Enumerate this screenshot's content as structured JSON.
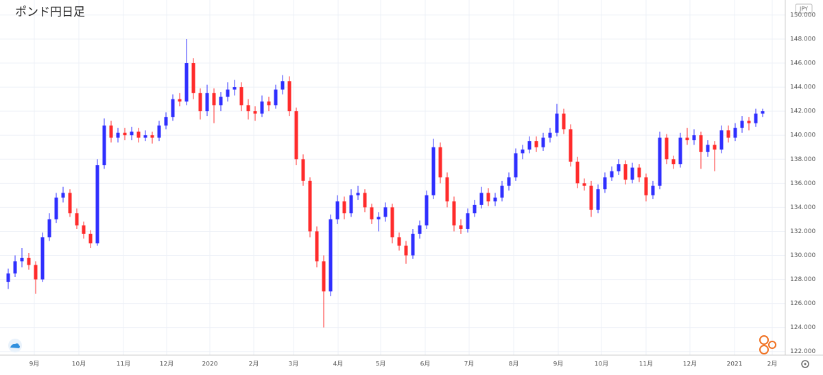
{
  "chart_data": {
    "type": "candlestick",
    "title": "ポンド円日足",
    "y_axis_label": "JPY",
    "up_color": "#2f2fff",
    "down_color": "#ff2b2b",
    "grid": true,
    "ylim": [
      121.7,
      151.25
    ],
    "yticks": [
      {
        "value": 122,
        "label": "122.000"
      },
      {
        "value": 124,
        "label": "124.000"
      },
      {
        "value": 126,
        "label": "126.000"
      },
      {
        "value": 128,
        "label": "128.000"
      },
      {
        "value": 130,
        "label": "130.000"
      },
      {
        "value": 132,
        "label": "132.000"
      },
      {
        "value": 134,
        "label": "134.000"
      },
      {
        "value": 136,
        "label": "136.000"
      },
      {
        "value": 138,
        "label": "138.000"
      },
      {
        "value": 140,
        "label": "140.000"
      },
      {
        "value": 142,
        "label": "142.000"
      },
      {
        "value": 144,
        "label": "144.000"
      },
      {
        "value": 146,
        "label": "146.000"
      },
      {
        "value": 148,
        "label": "148.000"
      },
      {
        "value": 150,
        "label": "150.000"
      }
    ],
    "xlim": [
      -1.2,
      112.8
    ],
    "xticks": [
      {
        "value": 3.8,
        "label": "9月"
      },
      {
        "value": 10.3,
        "label": "10月"
      },
      {
        "value": 16.8,
        "label": "11月"
      },
      {
        "value": 23.1,
        "label": "12月"
      },
      {
        "value": 29.4,
        "label": "2020"
      },
      {
        "value": 35.8,
        "label": "2月"
      },
      {
        "value": 41.6,
        "label": "3月"
      },
      {
        "value": 48.1,
        "label": "4月"
      },
      {
        "value": 54.3,
        "label": "5月"
      },
      {
        "value": 60.8,
        "label": "6月"
      },
      {
        "value": 67.2,
        "label": "7月"
      },
      {
        "value": 73.7,
        "label": "8月"
      },
      {
        "value": 80.2,
        "label": "9月"
      },
      {
        "value": 86.5,
        "label": "10月"
      },
      {
        "value": 93.0,
        "label": "11月"
      },
      {
        "value": 99.4,
        "label": "12月"
      },
      {
        "value": 105.9,
        "label": "2021"
      },
      {
        "value": 111.4,
        "label": "2月"
      }
    ],
    "open": [
      127.8,
      128.5,
      129.5,
      129.8,
      129.2,
      128.0,
      131.5,
      133.0,
      134.8,
      135.2,
      133.5,
      132.5,
      131.8,
      131.0,
      137.5,
      140.8,
      139.8,
      140.2,
      140.0,
      140.3,
      139.8,
      140.0,
      139.8,
      140.8,
      141.5,
      143.0,
      142.8,
      146.0,
      143.5,
      142.0,
      143.5,
      142.5,
      143.2,
      143.8,
      144.0,
      142.5,
      142.0,
      141.8,
      142.8,
      142.5,
      143.8,
      144.5,
      142.0,
      138.0,
      136.2,
      132.0,
      129.5,
      127.0,
      133.0,
      134.5,
      133.5,
      135.0,
      135.2,
      134.0,
      133.0,
      133.2,
      134.0,
      131.5,
      130.8,
      130.0,
      131.8,
      132.5,
      135.0,
      139.0,
      136.5,
      134.5,
      132.5,
      132.2,
      133.5,
      134.2,
      135.2,
      134.5,
      134.8,
      135.8,
      136.5,
      138.5,
      138.8,
      139.5,
      139.0,
      139.8,
      140.2,
      141.8,
      140.5,
      137.8,
      136.0,
      135.8,
      133.8,
      135.5,
      136.5,
      137.0,
      137.6,
      136.3,
      137.3,
      136.5,
      135.0,
      135.8,
      139.8,
      138.0,
      137.6,
      139.8,
      139.6,
      140.0,
      138.6,
      139.2,
      138.8,
      140.4,
      139.8,
      140.6,
      141.2,
      141.0,
      141.8
    ],
    "high": [
      128.9,
      130.0,
      130.6,
      130.2,
      129.5,
      131.9,
      133.5,
      135.2,
      135.7,
      135.5,
      133.9,
      132.8,
      132.1,
      138.0,
      141.4,
      141.2,
      140.6,
      140.6,
      140.7,
      140.6,
      140.4,
      140.3,
      141.2,
      141.9,
      143.4,
      143.5,
      148.0,
      146.4,
      143.9,
      144.2,
      143.9,
      143.6,
      144.4,
      144.6,
      144.4,
      143.0,
      142.4,
      143.3,
      143.2,
      144.2,
      145.0,
      144.9,
      142.3,
      138.4,
      136.5,
      132.4,
      130.0,
      133.4,
      135.0,
      134.9,
      135.5,
      135.8,
      135.5,
      134.3,
      133.6,
      134.4,
      134.3,
      131.9,
      131.2,
      132.2,
      132.9,
      135.4,
      139.7,
      139.4,
      136.9,
      134.9,
      133.0,
      133.9,
      134.6,
      135.7,
      135.6,
      135.2,
      136.2,
      136.9,
      138.9,
      139.2,
      139.9,
      139.9,
      140.2,
      140.6,
      142.6,
      142.2,
      140.9,
      138.2,
      136.4,
      136.2,
      135.9,
      136.9,
      137.4,
      138.0,
      137.9,
      137.7,
      137.6,
      136.8,
      136.2,
      140.3,
      140.1,
      138.3,
      140.2,
      140.6,
      140.5,
      140.3,
      139.6,
      139.5,
      140.8,
      140.8,
      141.0,
      141.6,
      141.5,
      142.2,
      142.2
    ],
    "low": [
      127.2,
      128.2,
      129.0,
      128.8,
      126.8,
      127.8,
      131.2,
      132.7,
      134.4,
      133.2,
      132.2,
      131.4,
      130.6,
      130.8,
      137.2,
      139.4,
      139.4,
      139.6,
      139.6,
      139.4,
      139.5,
      139.3,
      139.5,
      140.5,
      141.2,
      142.4,
      142.5,
      143.0,
      141.3,
      141.6,
      141.0,
      142.0,
      142.8,
      143.3,
      142.0,
      141.3,
      141.2,
      141.5,
      142.0,
      142.2,
      143.4,
      141.6,
      137.5,
      135.8,
      131.5,
      129.0,
      124.0,
      126.6,
      132.6,
      133.0,
      133.2,
      134.6,
      133.6,
      132.6,
      132.0,
      132.8,
      131.0,
      130.4,
      129.3,
      129.7,
      131.4,
      132.2,
      134.7,
      136.0,
      134.0,
      132.0,
      131.8,
      131.9,
      133.2,
      133.9,
      134.1,
      134.1,
      134.5,
      135.4,
      136.2,
      138.0,
      138.5,
      138.6,
      138.7,
      139.4,
      139.9,
      140.1,
      137.4,
      135.6,
      135.4,
      133.2,
      133.5,
      135.2,
      136.2,
      136.7,
      135.9,
      136.0,
      136.1,
      134.5,
      134.7,
      135.5,
      137.6,
      137.2,
      137.3,
      139.2,
      139.2,
      137.2,
      138.2,
      137.0,
      138.5,
      139.4,
      139.5,
      140.2,
      140.4,
      140.7,
      141.5
    ],
    "close": [
      128.5,
      129.5,
      129.8,
      129.2,
      128.0,
      131.5,
      133.0,
      134.8,
      135.2,
      133.5,
      132.5,
      131.8,
      131.0,
      137.5,
      140.8,
      139.8,
      140.2,
      140.0,
      140.3,
      139.8,
      140.0,
      139.8,
      140.8,
      141.5,
      143.0,
      142.8,
      146.0,
      143.5,
      142.0,
      143.5,
      142.5,
      143.2,
      143.8,
      144.0,
      142.5,
      142.0,
      141.8,
      142.8,
      142.5,
      143.8,
      144.5,
      142.0,
      138.0,
      136.2,
      132.0,
      129.5,
      127.0,
      133.0,
      134.5,
      133.5,
      135.0,
      135.2,
      134.0,
      133.0,
      133.2,
      134.0,
      131.5,
      130.8,
      130.0,
      131.8,
      132.5,
      135.0,
      139.0,
      136.5,
      134.5,
      132.5,
      132.2,
      133.5,
      134.2,
      135.2,
      134.5,
      134.8,
      135.8,
      136.5,
      138.5,
      138.8,
      139.5,
      139.0,
      139.8,
      140.2,
      141.8,
      140.5,
      137.8,
      136.0,
      135.8,
      133.8,
      135.5,
      136.5,
      137.0,
      137.6,
      136.3,
      137.3,
      136.5,
      135.0,
      135.8,
      139.8,
      138.0,
      137.6,
      139.8,
      139.6,
      140.0,
      138.6,
      139.2,
      138.8,
      140.4,
      139.8,
      140.6,
      141.2,
      141.0,
      141.8,
      142.0
    ]
  }
}
